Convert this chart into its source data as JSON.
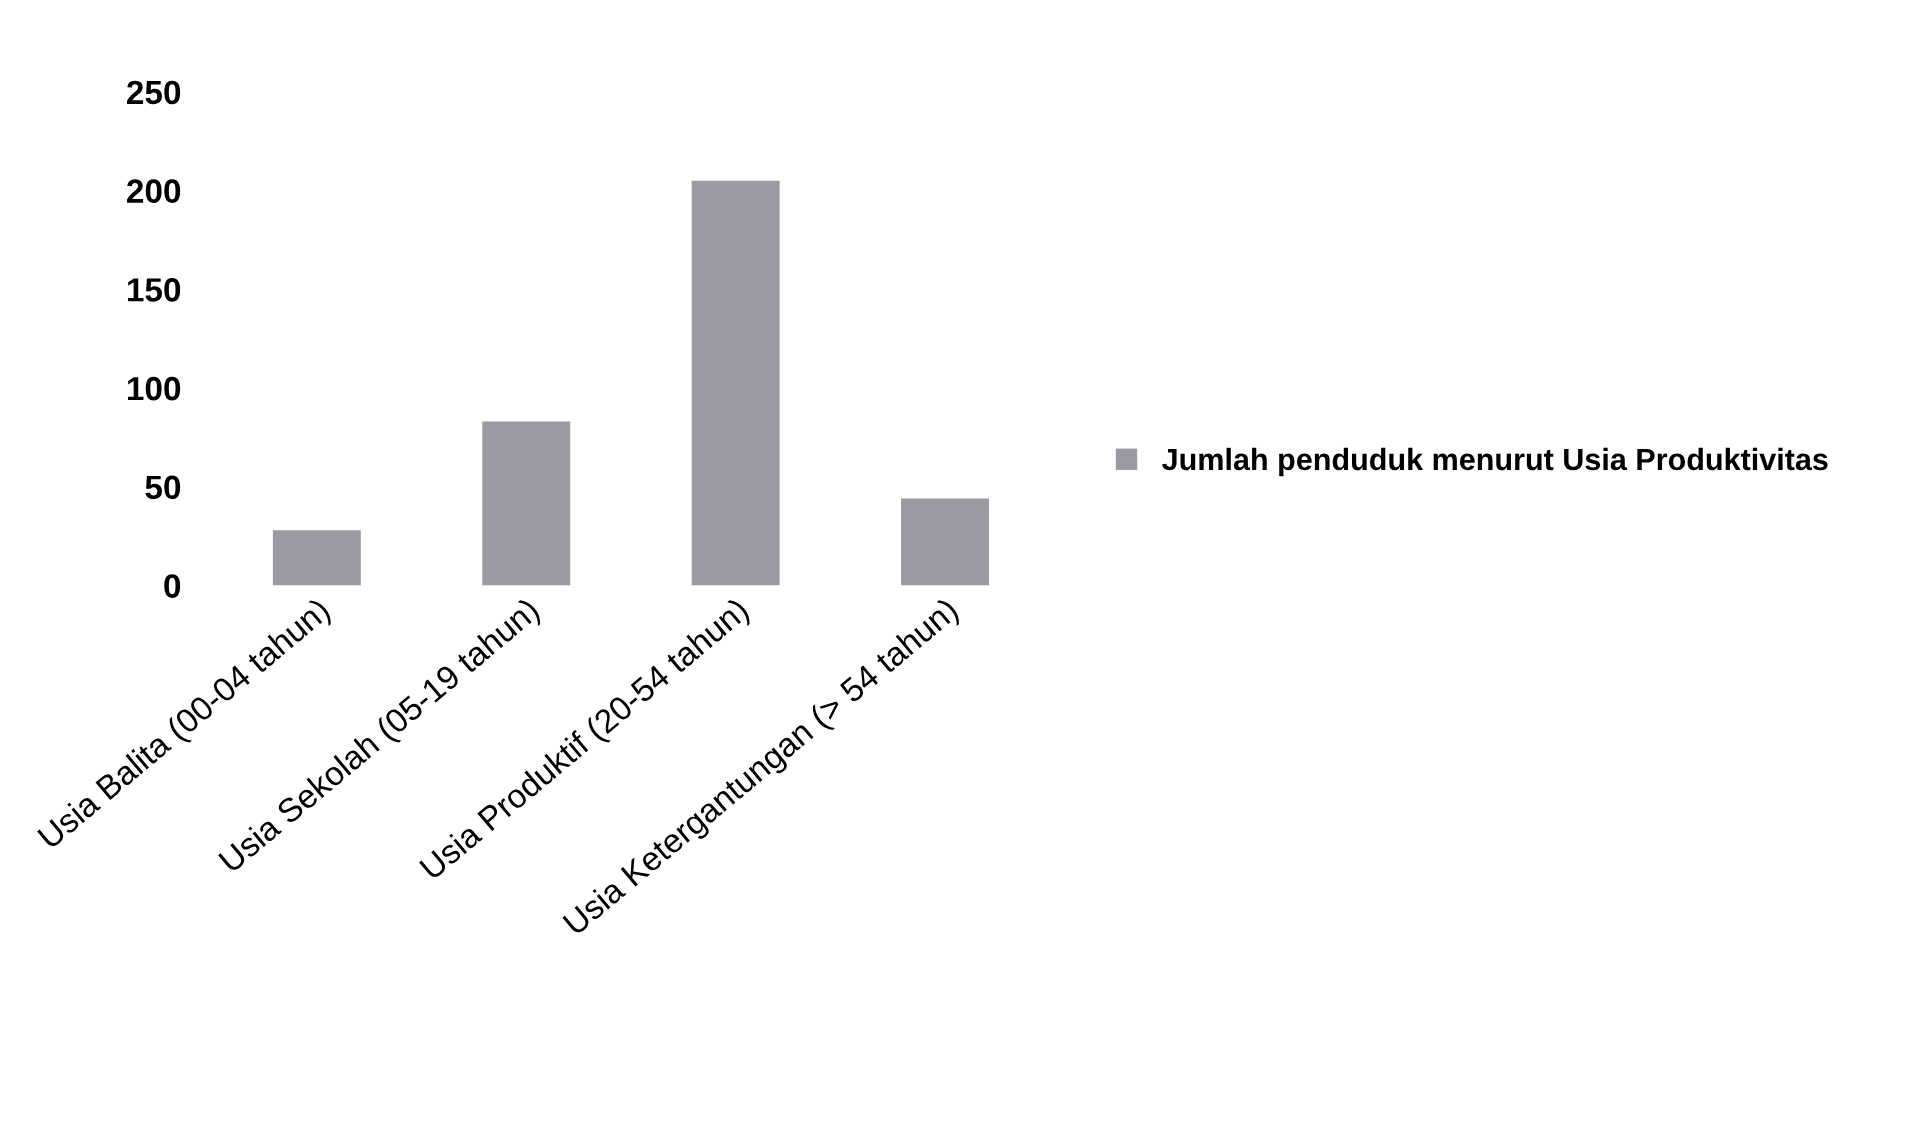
{
  "chart_data": {
    "type": "bar",
    "categories": [
      "Usia Balita (00-04 tahun)",
      "Usia Sekolah (05-19 tahun)",
      "Usia Produktif (20-54 tahun)",
      "Usia Ketergantungan (> 54 tahun)"
    ],
    "series": [
      {
        "name": "Jumlah penduduk menurut Usia Produktivitas",
        "color": "#9a9aa2",
        "values": [
          28,
          83,
          205,
          44
        ]
      }
    ],
    "ylim": [
      0,
      250
    ],
    "yticks": [
      0,
      50,
      100,
      150,
      200,
      250
    ],
    "grid": false,
    "legend": "right"
  }
}
